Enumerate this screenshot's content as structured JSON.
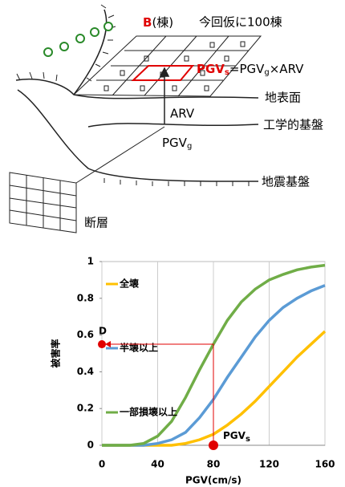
{
  "diagram": {
    "building_count": {
      "symbol": "B",
      "unit": "(棟)",
      "note": "今回仮に100棟"
    },
    "formula": {
      "lhs": {
        "main": "PGV",
        "sub": "s"
      },
      "rhs": [
        {
          "main": "=PGV",
          "sub": "g"
        },
        {
          "main": "×ARV"
        }
      ]
    },
    "layers": {
      "surface": "地表面",
      "engineering_base": "工学的基盤",
      "seismic_base": "地震基盤",
      "fault": "断層"
    },
    "amplification": "ARV",
    "base_motion": {
      "main": "PGV",
      "sub": "g"
    }
  },
  "chart_data": {
    "type": "line",
    "x_label": "PGV(cm/s)",
    "y_label": "被害率",
    "x": [
      0,
      10,
      20,
      30,
      40,
      50,
      60,
      70,
      80,
      90,
      100,
      110,
      120,
      130,
      140,
      150,
      160
    ],
    "series": [
      {
        "name": "全壊",
        "color": "#ffc000",
        "values": [
          0,
          0,
          0,
          0,
          0,
          0,
          0.01,
          0.03,
          0.06,
          0.11,
          0.17,
          0.24,
          0.32,
          0.4,
          0.48,
          0.55,
          0.62
        ]
      },
      {
        "name": "半壊以上",
        "color": "#5b9bd5",
        "values": [
          0,
          0,
          0,
          0,
          0.01,
          0.03,
          0.07,
          0.15,
          0.25,
          0.37,
          0.48,
          0.59,
          0.68,
          0.75,
          0.8,
          0.84,
          0.87
        ]
      },
      {
        "name": "一部損壊以上",
        "color": "#70ad47",
        "values": [
          0,
          0,
          0,
          0.01,
          0.05,
          0.13,
          0.26,
          0.41,
          0.55,
          0.68,
          0.78,
          0.85,
          0.9,
          0.93,
          0.955,
          0.97,
          0.98
        ]
      }
    ],
    "xlim": [
      0,
      160
    ],
    "xticks": [
      0,
      40,
      80,
      120,
      160
    ],
    "ylim": [
      0,
      1
    ],
    "yticks": [
      0,
      0.2,
      0.4,
      0.6,
      0.8,
      1
    ],
    "grid": "x",
    "annotations": {
      "point_label": "D",
      "x_label": {
        "main": "PGV",
        "sub": "s"
      },
      "x": 80,
      "y": 0.55,
      "color": "#e00000"
    }
  }
}
